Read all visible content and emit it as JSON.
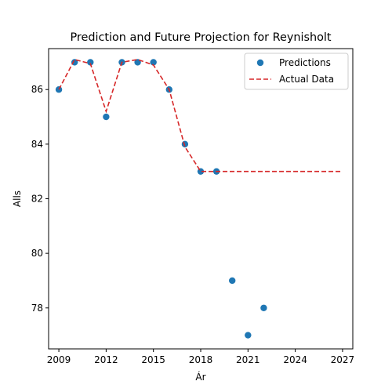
{
  "chart_data": {
    "type": "scatter",
    "title": "Prediction and Future Projection for Reynisholt",
    "xlabel": "Ár",
    "ylabel": "Alls",
    "xlim": [
      2008.35,
      2027.65
    ],
    "ylim": [
      76.5,
      87.5
    ],
    "xticks": [
      2009,
      2012,
      2015,
      2018,
      2021,
      2024,
      2027
    ],
    "yticks": [
      78,
      80,
      82,
      84,
      86
    ],
    "grid": false,
    "legend_position": "top-right",
    "series": [
      {
        "name": "Predictions",
        "kind": "scatter",
        "color": "#1f77b4",
        "x": [
          2009,
          2010,
          2011,
          2012,
          2013,
          2014,
          2015,
          2016,
          2017,
          2018,
          2019,
          2020,
          2021,
          2022
        ],
        "y": [
          86,
          87,
          87,
          85,
          87,
          87,
          87,
          86,
          84,
          83,
          83,
          79,
          77,
          78
        ]
      },
      {
        "name": "Actual Data",
        "kind": "dashed-line",
        "color": "#d62728",
        "x": [
          2009,
          2010,
          2011,
          2012,
          2013,
          2014,
          2015,
          2016,
          2017,
          2018,
          2019,
          2020,
          2021,
          2022,
          2023,
          2024,
          2025,
          2026,
          2027
        ],
        "y": [
          86,
          87.1,
          86.95,
          85.2,
          87,
          87.1,
          86.9,
          86,
          83.9,
          83,
          83,
          83,
          83,
          83,
          83,
          83,
          83,
          83,
          83
        ]
      }
    ]
  }
}
